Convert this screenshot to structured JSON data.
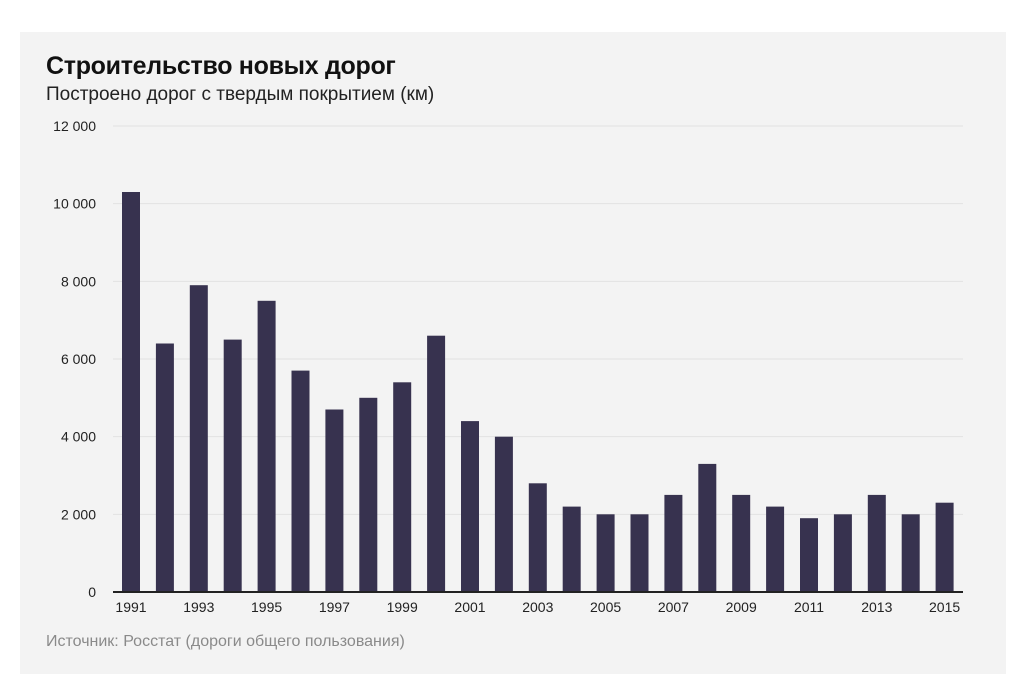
{
  "chart_data": {
    "type": "bar",
    "title": "Строительство новых дорог",
    "subtitle": "Построено дорог с твердым покрытием (км)",
    "source": "Источник: Росстат (дороги общего пользования)",
    "xlabel": "",
    "ylabel": "",
    "categories": [
      "1991",
      "1992",
      "1993",
      "1994",
      "1995",
      "1996",
      "1997",
      "1998",
      "1999",
      "2000",
      "2001",
      "2002",
      "2003",
      "2004",
      "2005",
      "2006",
      "2007",
      "2008",
      "2009",
      "2010",
      "2011",
      "2012",
      "2013",
      "2014",
      "2015"
    ],
    "values": [
      10300,
      6400,
      7900,
      6500,
      7500,
      5700,
      4700,
      5000,
      5400,
      6600,
      4400,
      4000,
      2800,
      2200,
      2000,
      2000,
      2500,
      3300,
      2500,
      2200,
      1900,
      2000,
      2500,
      2000,
      2300
    ],
    "x_tick_labels": [
      "1991",
      "",
      "1993",
      "",
      "1995",
      "",
      "1997",
      "",
      "1999",
      "",
      "2001",
      "",
      "2003",
      "",
      "2005",
      "",
      "2007",
      "",
      "2009",
      "",
      "2011",
      "",
      "2013",
      "",
      "2015"
    ],
    "ylim": [
      0,
      12000
    ],
    "y_ticks": [
      0,
      2000,
      4000,
      6000,
      8000,
      10000,
      12000
    ],
    "y_tick_labels": [
      "0",
      "2 000",
      "4 000",
      "6 000",
      "8 000",
      "10 000",
      "12 000"
    ],
    "grid": true,
    "colors": {
      "bar": "#37324f",
      "background": "#f3f3f3"
    }
  }
}
